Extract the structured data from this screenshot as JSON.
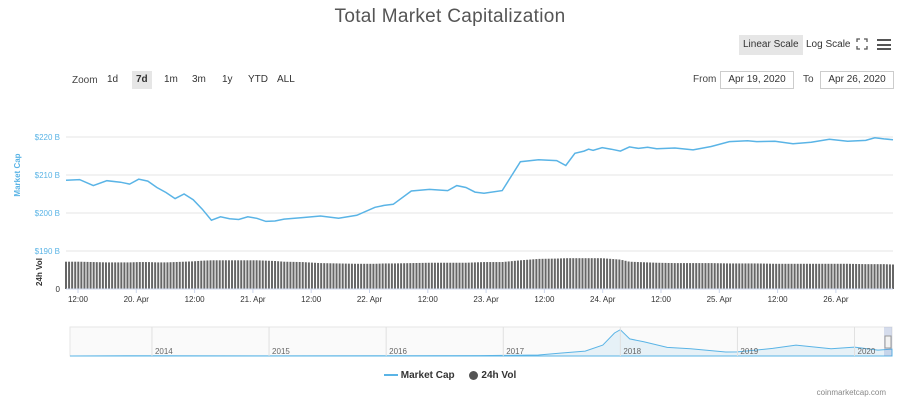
{
  "header": {
    "title": "Total Market Capitalization"
  },
  "toolbar": {
    "linear_label": "Linear Scale",
    "log_label": "Log Scale",
    "zoom_label": "Zoom",
    "zoom_buttons": [
      "1d",
      "7d",
      "1m",
      "3m",
      "1y",
      "YTD",
      "ALL"
    ],
    "zoom_selected": "7d",
    "from_label": "From",
    "from_value": "Apr 19, 2020",
    "to_label": "To",
    "to_value": "Apr 26, 2020"
  },
  "legend": {
    "market_cap_label": "Market Cap",
    "vol_label": "24h Vol"
  },
  "credit": "coinmarketcap.com",
  "colors": {
    "market_cap": "#5ab4e6",
    "volume": "#666666",
    "navigator": "#5ab4e6"
  },
  "chart_data": [
    {
      "type": "line",
      "ylabel": "Market Cap",
      "ytick_labels": [
        "$190 B",
        "$200 B",
        "$210 B",
        "$220 B"
      ],
      "ylim": [
        190,
        225
      ],
      "xtick_labels": [
        "12:00",
        "20. Apr",
        "12:00",
        "21. Apr",
        "12:00",
        "22. Apr",
        "12:00",
        "23. Apr",
        "12:00",
        "24. Apr",
        "12:00",
        "25. Apr",
        "12:00",
        "26. Apr"
      ],
      "x_hours": [
        0,
        3,
        6,
        9,
        12,
        14,
        16,
        18,
        20,
        22,
        24,
        26,
        28,
        30,
        32,
        34,
        36,
        38,
        40,
        42,
        44,
        46,
        48,
        52,
        56,
        60,
        64,
        68,
        70,
        72,
        76,
        80,
        84,
        86,
        88,
        90,
        92,
        96,
        100,
        104,
        108,
        110,
        112,
        114,
        115,
        116,
        118,
        120,
        122,
        124,
        126,
        128,
        130,
        134,
        138,
        142,
        146,
        150,
        152,
        156,
        160,
        164,
        168,
        172,
        176,
        178,
        180,
        182
      ],
      "series": [
        {
          "name": "Market Cap",
          "values": [
            208.6,
            208.8,
            207.2,
            208.5,
            208.1,
            207.6,
            208.9,
            208.4,
            206.7,
            205.4,
            203.8,
            205.0,
            203.5,
            201.0,
            198.1,
            199.0,
            198.5,
            198.3,
            199.0,
            198.6,
            197.8,
            197.9,
            198.4,
            198.8,
            199.2,
            198.6,
            199.4,
            201.5,
            202.0,
            202.3,
            205.8,
            206.2,
            205.9,
            207.2,
            206.7,
            205.5,
            205.2,
            205.9,
            213.5,
            214.0,
            213.8,
            212.5,
            215.7,
            216.3,
            216.8,
            216.5,
            217.2,
            216.8,
            216.3,
            217.4,
            217.0,
            217.3,
            216.9,
            217.1,
            216.6,
            217.5,
            218.8,
            219.0,
            218.8,
            218.9,
            218.2,
            218.6,
            219.4,
            218.9,
            219.1,
            219.8,
            219.5,
            219.3
          ]
        },
        {
          "name": "24h Vol",
          "values": [
            0.78,
            0.78,
            0.77,
            0.76,
            0.76,
            0.76,
            0.77,
            0.77,
            0.76,
            0.76,
            0.77,
            0.78,
            0.79,
            0.81,
            0.82,
            0.82,
            0.82,
            0.82,
            0.82,
            0.82,
            0.81,
            0.8,
            0.78,
            0.77,
            0.74,
            0.73,
            0.72,
            0.72,
            0.73,
            0.73,
            0.74,
            0.75,
            0.75,
            0.75,
            0.75,
            0.76,
            0.77,
            0.77,
            0.82,
            0.86,
            0.87,
            0.88,
            0.88,
            0.88,
            0.88,
            0.88,
            0.88,
            0.86,
            0.84,
            0.78,
            0.77,
            0.76,
            0.75,
            0.74,
            0.74,
            0.74,
            0.73,
            0.73,
            0.73,
            0.72,
            0.72,
            0.72,
            0.72,
            0.72,
            0.71,
            0.71,
            0.71,
            0.7
          ]
        }
      ],
      "vol_ylabel": "24h Vol",
      "vol_ytick_labels": [
        "0"
      ]
    },
    {
      "type": "area",
      "xtick_labels": [
        "2014",
        "2015",
        "2016",
        "2017",
        "2018",
        "2019",
        "2020"
      ],
      "x_years": [
        2013.3,
        2014.0,
        2015.0,
        2016.0,
        2016.8,
        2017.0,
        2017.3,
        2017.5,
        2017.7,
        2017.85,
        2017.95,
        2018.0,
        2018.08,
        2018.2,
        2018.4,
        2018.6,
        2018.9,
        2019.0,
        2019.3,
        2019.5,
        2019.8,
        2020.0,
        2020.2,
        2020.32
      ],
      "values": [
        1.5,
        9,
        4,
        6,
        12,
        18,
        30,
        90,
        150,
        330,
        700,
        800,
        520,
        430,
        260,
        220,
        120,
        125,
        230,
        330,
        220,
        270,
        180,
        210
      ]
    }
  ]
}
